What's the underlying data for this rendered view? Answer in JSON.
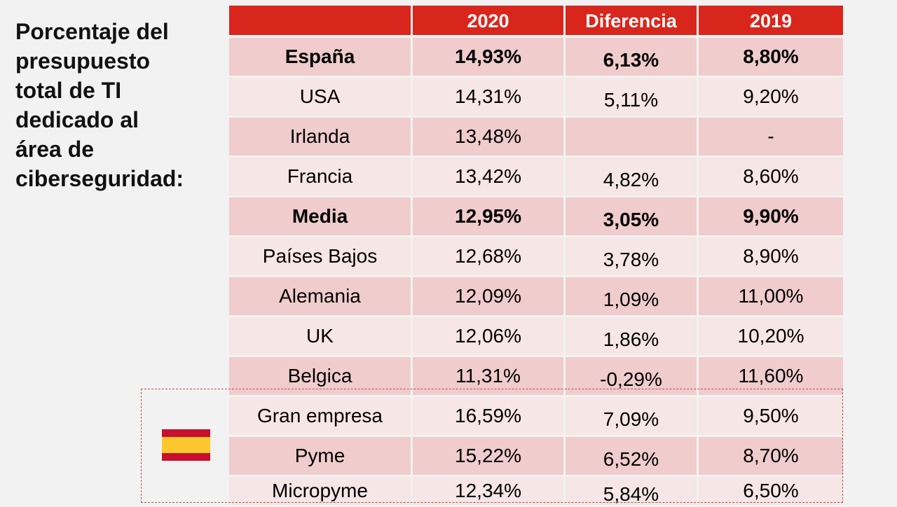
{
  "title": "Porcentaje del presupuesto total de TI dedicado al área de ciberseguridad:",
  "title_lines": [
    "Porcentaje del",
    "presupuesto",
    "total de TI",
    "dedicado al",
    "área de",
    "ciberseguridad:"
  ],
  "table": {
    "headers": [
      "",
      "2020",
      "Diferencia",
      "2019"
    ],
    "rows": [
      {
        "label": "España",
        "y2020": "14,93%",
        "diff": "6,13%",
        "y2019": "8,80%",
        "bold": true
      },
      {
        "label": "USA",
        "y2020": "14,31%",
        "diff": "5,11%",
        "y2019": "9,20%"
      },
      {
        "label": "Irlanda",
        "y2020": "13,48%",
        "diff": "",
        "y2019": "-"
      },
      {
        "label": "Francia",
        "y2020": "13,42%",
        "diff": "4,82%",
        "y2019": "8,60%"
      },
      {
        "label": "Media",
        "y2020": "12,95%",
        "diff": "3,05%",
        "y2019": "9,90%",
        "bold": true
      },
      {
        "label": "Países Bajos",
        "y2020": "12,68%",
        "diff": "3,78%",
        "y2019": "8,90%"
      },
      {
        "label": "Alemania",
        "y2020": "12,09%",
        "diff": "1,09%",
        "y2019": "11,00%"
      },
      {
        "label": "UK",
        "y2020": "12,06%",
        "diff": "1,86%",
        "y2019": "10,20%"
      },
      {
        "label": "Belgica",
        "y2020": "11,31%",
        "diff": "-0,29%",
        "y2019": "11,60%"
      },
      {
        "label": "Gran empresa",
        "y2020": "16,59%",
        "diff": "7,09%",
        "y2019": "9,50%"
      },
      {
        "label": "Pyme",
        "y2020": "15,22%",
        "diff": "6,52%",
        "y2019": "8,70%"
      },
      {
        "label": "Micropyme",
        "y2020": "12,34%",
        "diff": "5,84%",
        "y2019": "6,50%"
      }
    ]
  },
  "spain_group_icon": "spain-flag-icon",
  "colors": {
    "header": "#d9261c",
    "row_dark": "#f0cccc",
    "row_light": "#f6e6e6",
    "flag_red": "#c8102e",
    "flag_yellow": "#fdc82f"
  }
}
